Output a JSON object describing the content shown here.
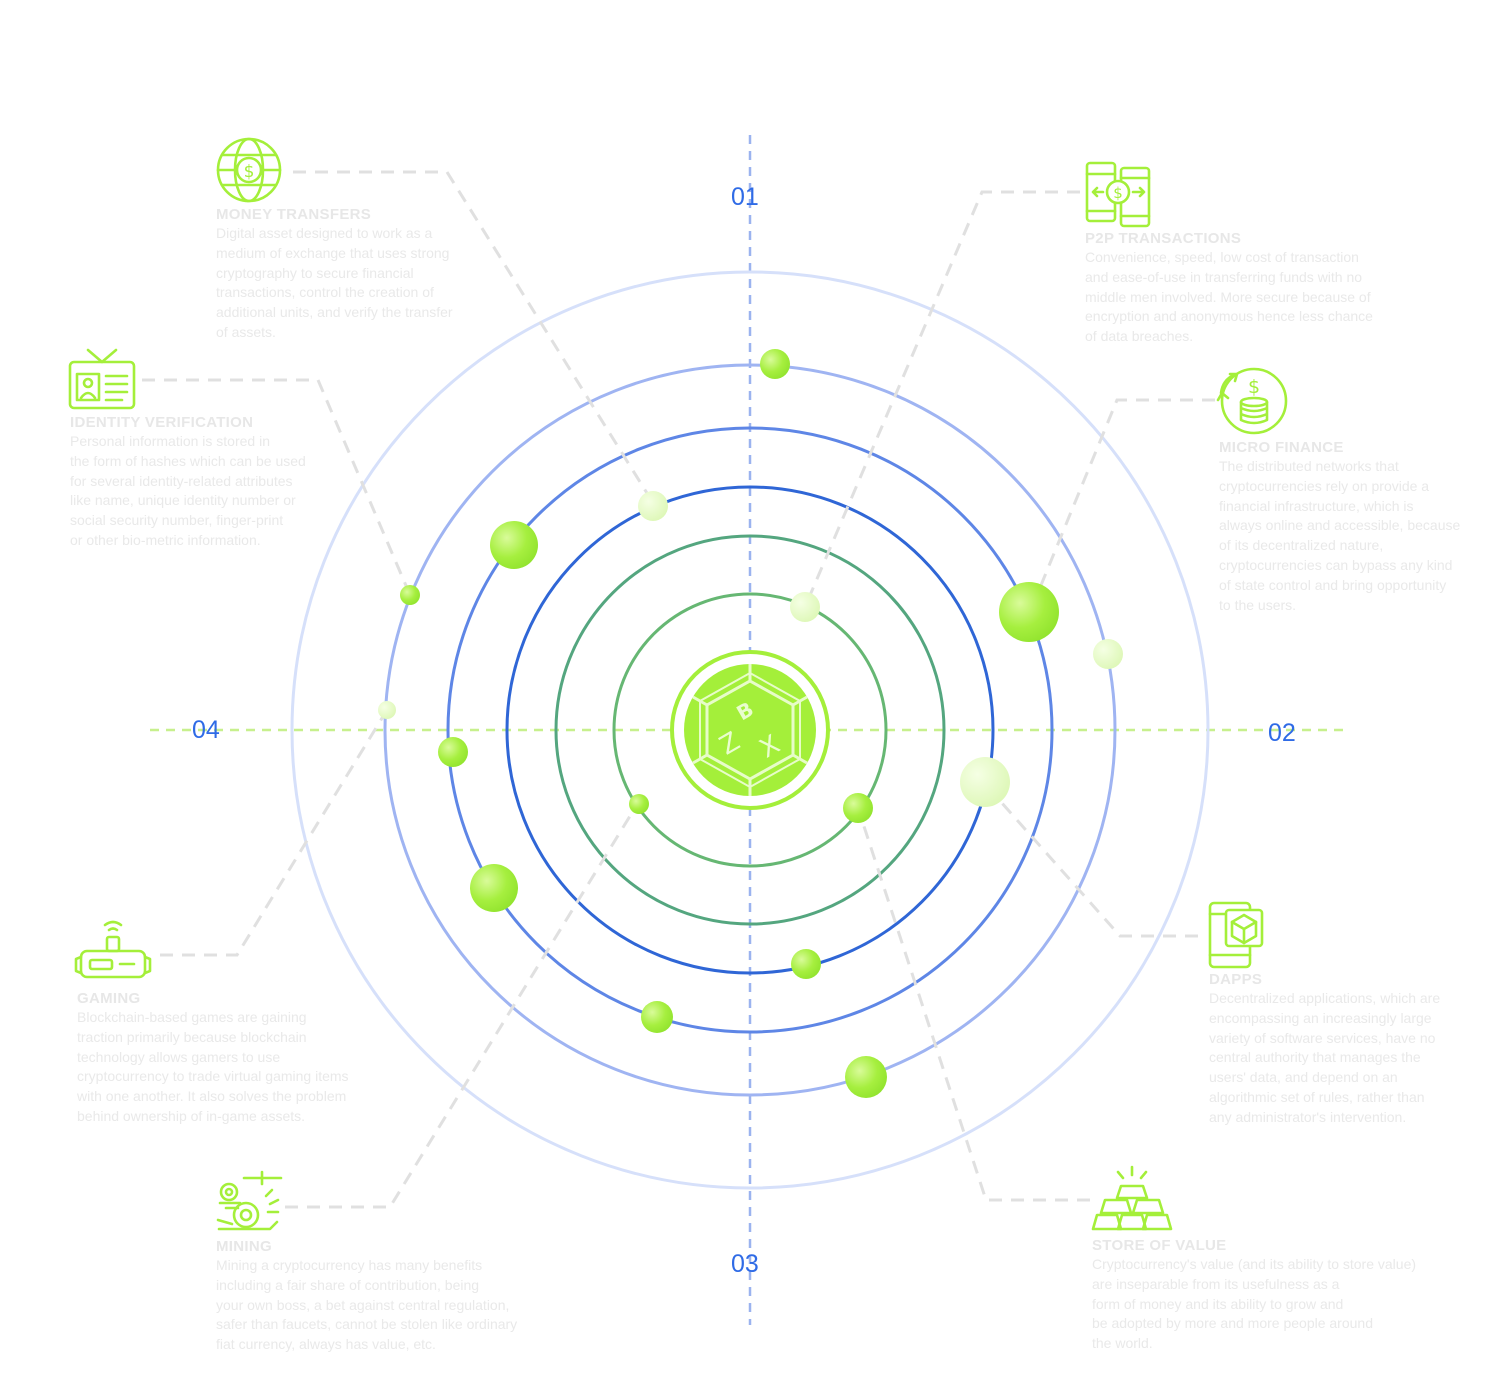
{
  "axis_labels": {
    "top": "01",
    "right": "02",
    "bottom": "03",
    "left": "04"
  },
  "center_logo": {
    "letters": [
      "B",
      "Z",
      "X"
    ]
  },
  "colors": {
    "accent_green": "#a4ef3a",
    "axis_blue": "#2f6be6",
    "connector_gray": "#e2e2e2",
    "text_gray": "#e7e7e7"
  },
  "items": [
    {
      "key": "money_transfers",
      "icon": "globe-dollar-icon",
      "title": "MONEY TRANSFERS",
      "description": "Digital asset designed to work as a\nmedium of exchange that uses strong\ncryptography to secure financial\ntransactions, control the creation of\nadditional units, and verify the transfer\nof assets."
    },
    {
      "key": "p2p_transactions",
      "icon": "p2p-phones-icon",
      "title": "P2P TRANSACTIONS",
      "description": "Convenience, speed, low cost of transaction\nand ease-of-use in transferring funds with no\nmiddle men involved. More secure because of\nencryption and anonymous hence less chance\nof data breaches."
    },
    {
      "key": "identity_verification",
      "icon": "id-card-icon",
      "title": "IDENTITY VERIFICATION",
      "description": "Personal information is stored in\nthe form of hashes which can be used\nfor several identity-related attributes\nlike name, unique identity number or\nsocial security number, finger-print\nor other bio-metric information."
    },
    {
      "key": "micro_finance",
      "icon": "coin-stack-icon",
      "title": "MICRO FINANCE",
      "description": "The distributed networks that\ncryptocurrencies rely on provide a\nfinancial infrastructure, which is\nalways online and accessible, because\nof its decentralized nature,\ncryptocurrencies can bypass any kind\nof state control and bring opportunity\nto the users."
    },
    {
      "key": "gaming",
      "icon": "vr-headset-icon",
      "title": "GAMING",
      "description": "Blockchain-based games are gaining\ntraction primarily because blockchain\ntechnology allows gamers to use\ncryptocurrency to trade virtual gaming items\nwith one another. It also solves the problem\nbehind ownership of in-game assets."
    },
    {
      "key": "dapps",
      "icon": "mobile-cube-icon",
      "title": "DAPPS",
      "description": "Decentralized applications, which are\nencompassing an increasingly large\nvariety of software services, have no\ncentral authority that manages the\nusers' data, and depend on an\nalgorithmic set of rules, rather than\nany administrator's intervention."
    },
    {
      "key": "mining",
      "icon": "mining-pickaxe-icon",
      "title": "MINING",
      "description": "Mining a cryptocurrency has many benefits\nincluding a fair share of contribution, being\nyour own boss, a bet against central regulation,\n safer than faucets, cannot be stolen like ordinary\nfiat currency, always has value, etc."
    },
    {
      "key": "store_of_value",
      "icon": "gold-bars-icon",
      "title": "STORE OF VALUE",
      "description": "Cryptocurrency's value (and its ability to store value)\nare inseparable from its usefulness as a\nform of money and its ability to grow and\nbe adopted by more and more people around\nthe world."
    }
  ]
}
